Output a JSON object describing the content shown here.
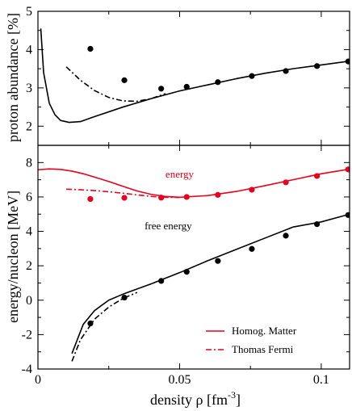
{
  "chart_data": [
    {
      "type": "line",
      "panel": "top",
      "ylabel": "proton abundance [%]",
      "xlim": [
        0,
        0.11
      ],
      "ylim": [
        1.5,
        5
      ],
      "xticks": [
        0,
        0.05,
        0.1
      ],
      "yticks": [
        2,
        3,
        4,
        5
      ],
      "yticklabels": [
        "2",
        "3",
        "4",
        "5"
      ],
      "grid": false,
      "series": [
        {
          "name": "Homog. Matter",
          "style": "solid",
          "color": "#000000",
          "x": [
            0.001,
            0.002,
            0.004,
            0.006,
            0.008,
            0.011,
            0.015,
            0.02,
            0.03,
            0.04,
            0.05,
            0.06,
            0.07,
            0.08,
            0.09,
            0.1,
            0.11
          ],
          "y": [
            4.55,
            3.4,
            2.6,
            2.3,
            2.15,
            2.1,
            2.12,
            2.25,
            2.5,
            2.72,
            2.92,
            3.08,
            3.24,
            3.38,
            3.5,
            3.6,
            3.7
          ]
        },
        {
          "name": "Thomas Fermi",
          "style": "dashdot",
          "color": "#000000",
          "x": [
            0.01,
            0.015,
            0.02,
            0.025,
            0.03,
            0.035,
            0.04,
            0.045
          ],
          "y": [
            3.55,
            3.2,
            2.93,
            2.75,
            2.66,
            2.65,
            2.72,
            2.85
          ]
        },
        {
          "name": "",
          "style": "markers",
          "color": "#000000",
          "x": [
            0.0185,
            0.0305,
            0.0435,
            0.0525,
            0.0635,
            0.0755,
            0.0875,
            0.0985,
            0.1095
          ],
          "y": [
            4.02,
            3.2,
            2.98,
            3.03,
            3.15,
            3.31,
            3.44,
            3.57,
            3.69
          ]
        }
      ]
    },
    {
      "type": "line",
      "panel": "bottom",
      "xlabel": "density ρ [fm",
      "xlabel_sup": "-3",
      "xlabel_end": "]",
      "ylabel": "energy/nucleon [MeV]",
      "xlim": [
        0,
        0.11
      ],
      "ylim": [
        -4,
        9
      ],
      "xticks": [
        0,
        0.05,
        0.1
      ],
      "xticklabels": [
        "0",
        "0.05",
        "0.1"
      ],
      "yticks": [
        -4,
        -2,
        0,
        2,
        4,
        6,
        8
      ],
      "yticklabels": [
        "-4",
        "-2",
        "0",
        "2",
        "4",
        "6",
        "8"
      ],
      "grid": false,
      "annotations": [
        {
          "text": "energy",
          "x": 0.05,
          "y": 7.3,
          "color": "#e8001c"
        },
        {
          "text": "free energy",
          "x": 0.046,
          "y": 4.3,
          "color": "#000000"
        }
      ],
      "legend": {
        "placement": "bottom-right",
        "entries": [
          {
            "label": "Homog. Matter",
            "style": "solid",
            "color": "#e8001c"
          },
          {
            "label": "Thomas Fermi",
            "style": "dashdot",
            "color": "#e8001c"
          }
        ]
      },
      "series": [
        {
          "name": "Homog. Matter",
          "group": "energy",
          "style": "solid",
          "color": "#e8001c",
          "x": [
            0,
            0.004,
            0.008,
            0.012,
            0.016,
            0.02,
            0.025,
            0.03,
            0.035,
            0.04,
            0.045,
            0.05,
            0.06,
            0.07,
            0.08,
            0.09,
            0.1,
            0.11
          ],
          "y": [
            7.58,
            7.63,
            7.6,
            7.5,
            7.35,
            7.15,
            6.9,
            6.62,
            6.35,
            6.15,
            6.03,
            5.98,
            6.08,
            6.32,
            6.65,
            7.0,
            7.35,
            7.62
          ]
        },
        {
          "name": "Thomas Fermi",
          "group": "energy",
          "style": "dashdot",
          "color": "#e8001c",
          "x": [
            0.01,
            0.015,
            0.02,
            0.025,
            0.03,
            0.035,
            0.04,
            0.045,
            0.05
          ],
          "y": [
            6.45,
            6.42,
            6.37,
            6.3,
            6.22,
            6.12,
            6.03,
            5.98,
            5.97
          ]
        },
        {
          "name": "",
          "group": "energy",
          "style": "markers",
          "color": "#e8001c",
          "x": [
            0.0185,
            0.0305,
            0.0435,
            0.0525,
            0.0635,
            0.0755,
            0.0875,
            0.0985,
            0.1095
          ],
          "y": [
            5.88,
            5.95,
            5.96,
            6.0,
            6.12,
            6.42,
            6.85,
            7.22,
            7.6
          ]
        },
        {
          "name": "Homog. Matter",
          "group": "free energy",
          "style": "solid",
          "color": "#000000",
          "x": [
            0.012,
            0.016,
            0.02,
            0.025,
            0.03,
            0.035,
            0.04,
            0.05,
            0.06,
            0.07,
            0.08,
            0.09,
            0.1,
            0.11
          ],
          "y": [
            -3.1,
            -1.4,
            -0.6,
            0.0,
            0.35,
            0.65,
            0.95,
            1.6,
            2.3,
            2.95,
            3.6,
            4.25,
            4.55,
            5.0
          ]
        },
        {
          "name": "Thomas Fermi",
          "group": "free energy",
          "style": "dashdot",
          "color": "#000000",
          "x": [
            0.012,
            0.015,
            0.02,
            0.025,
            0.03,
            0.035
          ],
          "y": [
            -3.55,
            -2.3,
            -1.1,
            -0.4,
            0.1,
            0.45
          ]
        },
        {
          "name": "",
          "group": "free energy",
          "style": "markers",
          "color": "#000000",
          "x": [
            0.0185,
            0.0305,
            0.0435,
            0.0525,
            0.0635,
            0.0755,
            0.0875,
            0.0985,
            0.1095
          ],
          "y": [
            -1.35,
            0.15,
            1.12,
            1.65,
            2.28,
            2.98,
            3.75,
            4.42,
            4.95
          ]
        }
      ]
    }
  ]
}
